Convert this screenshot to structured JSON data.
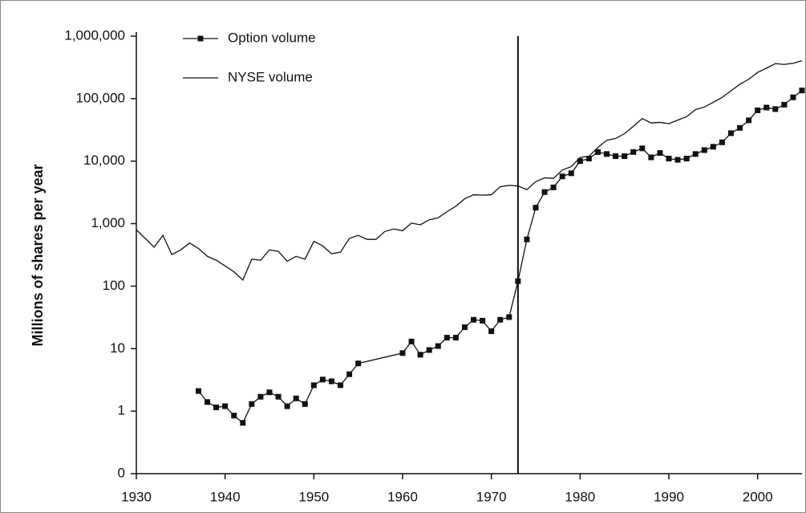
{
  "chart_data": {
    "type": "line",
    "y_label": "Millions of shares per year",
    "log_scale_y": true,
    "xlim": [
      1930,
      2005
    ],
    "xticks": [
      1930,
      1940,
      1950,
      1960,
      1970,
      1980,
      1990,
      2000
    ],
    "ylim": [
      0.1,
      1000000
    ],
    "yticks": [
      {
        "value": 0.1,
        "label": "0"
      },
      1,
      10,
      100,
      {
        "value": 1000,
        "label": "1,000"
      },
      {
        "value": 10000,
        "label": "10,000"
      },
      {
        "value": 100000,
        "label": "100,000"
      },
      {
        "value": 1000000,
        "label": "1,000,000"
      }
    ],
    "vline": 1973,
    "legend": "upper left",
    "series": [
      {
        "name": "Option volume",
        "color": "#111111",
        "marker": "square",
        "x": [
          1937,
          1938,
          1939,
          1940,
          1941,
          1942,
          1943,
          1944,
          1945,
          1946,
          1947,
          1948,
          1949,
          1950,
          1951,
          1952,
          1953,
          1954,
          1955,
          1960,
          1961,
          1962,
          1963,
          1964,
          1965,
          1966,
          1967,
          1968,
          1969,
          1970,
          1971,
          1972,
          1973,
          1974,
          1975,
          1976,
          1977,
          1978,
          1979,
          1980,
          1981,
          1982,
          1983,
          1984,
          1985,
          1986,
          1987,
          1988,
          1989,
          1990,
          1991,
          1992,
          1993,
          1994,
          1995,
          1996,
          1997,
          1998,
          1999,
          2000,
          2001,
          2002,
          2003,
          2004,
          2005
        ],
        "values": [
          2.1,
          1.4,
          1.15,
          1.2,
          0.85,
          0.65,
          1.3,
          1.7,
          2.0,
          1.7,
          1.2,
          1.6,
          1.3,
          2.6,
          3.2,
          3.0,
          2.6,
          3.9,
          5.8,
          8.5,
          13,
          8,
          9.5,
          11,
          15,
          15,
          22,
          29,
          28,
          19,
          29,
          32,
          120,
          560,
          1800,
          3200,
          3800,
          5700,
          6400,
          10000,
          11000,
          14000,
          13000,
          12000,
          12000,
          14000,
          16000,
          11500,
          13500,
          11000,
          10500,
          11000,
          13000,
          15000,
          17000,
          20000,
          28000,
          34000,
          45000,
          65000,
          72000,
          68000,
          80000,
          105000,
          135000
        ]
      },
      {
        "name": "NYSE volume",
        "color": "#111111",
        "marker": "none",
        "x": [
          1930,
          1931,
          1932,
          1933,
          1934,
          1935,
          1936,
          1937,
          1938,
          1939,
          1940,
          1941,
          1942,
          1943,
          1944,
          1945,
          1946,
          1947,
          1948,
          1949,
          1950,
          1951,
          1952,
          1953,
          1954,
          1955,
          1956,
          1957,
          1958,
          1959,
          1960,
          1961,
          1962,
          1963,
          1964,
          1965,
          1966,
          1967,
          1968,
          1969,
          1970,
          1971,
          1972,
          1973,
          1974,
          1975,
          1976,
          1977,
          1978,
          1979,
          1980,
          1981,
          1982,
          1983,
          1984,
          1985,
          1986,
          1987,
          1988,
          1989,
          1990,
          1991,
          1992,
          1993,
          1994,
          1995,
          1996,
          1997,
          1998,
          1999,
          2000,
          2001,
          2002,
          2003,
          2004,
          2005
        ],
        "values": [
          800,
          580,
          420,
          650,
          320,
          380,
          490,
          400,
          300,
          260,
          210,
          170,
          125,
          270,
          260,
          380,
          360,
          250,
          300,
          270,
          520,
          440,
          330,
          350,
          580,
          650,
          560,
          560,
          750,
          820,
          770,
          1020,
          960,
          1150,
          1240,
          1550,
          1900,
          2500,
          2900,
          2850,
          2900,
          3900,
          4100,
          4000,
          3500,
          4700,
          5400,
          5300,
          7200,
          8200,
          11400,
          12000,
          16500,
          21600,
          23000,
          27500,
          36000,
          48000,
          40800,
          41700,
          39700,
          45300,
          51400,
          66900,
          73400,
          87200,
          104600,
          133300,
          169700,
          203900,
          262500,
          307500,
          363100,
          352400,
          367100,
          403800
        ]
      }
    ]
  }
}
